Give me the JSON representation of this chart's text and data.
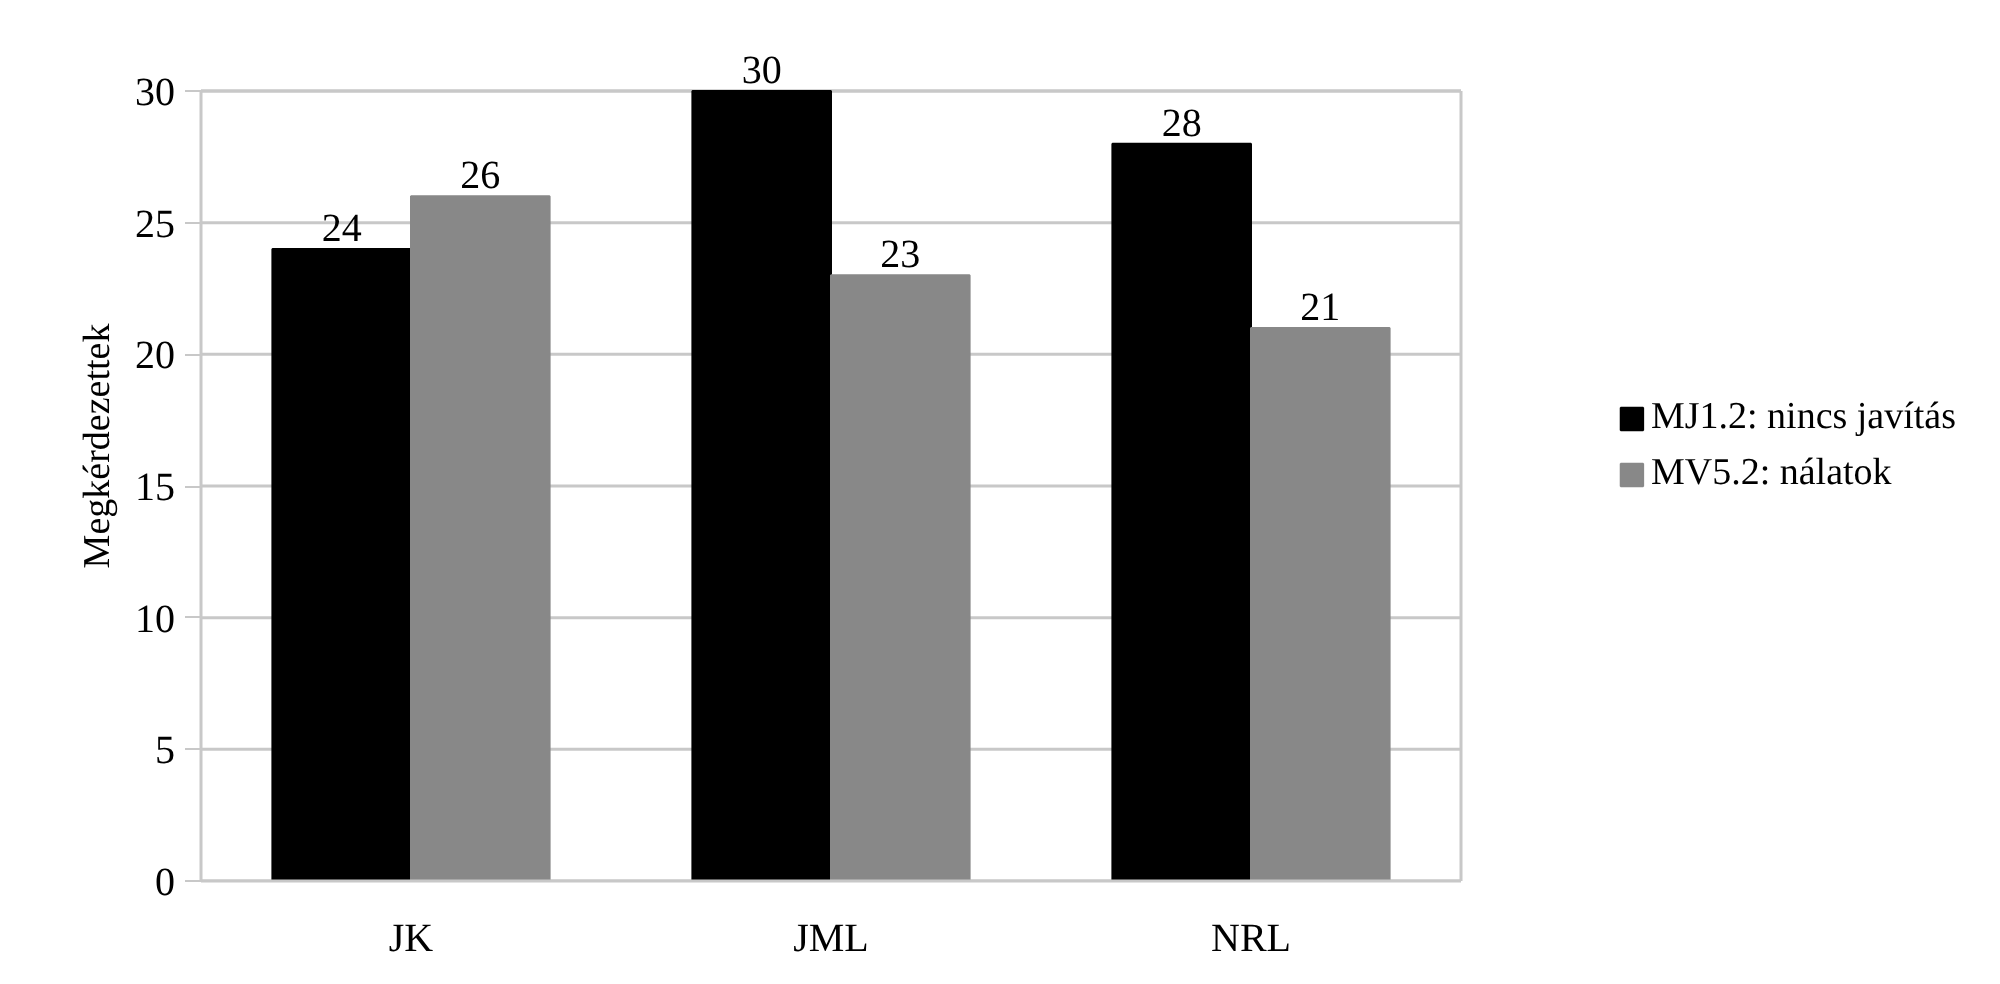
{
  "chart_data": {
    "type": "bar",
    "ylabel": "Megkérdezettek",
    "categories": [
      "JK",
      "JML",
      "NRL"
    ],
    "series": [
      {
        "name": "MJ1.2: nincs javítás",
        "color": "#000000",
        "values": [
          24,
          30,
          28
        ]
      },
      {
        "name": "MV5.2: nálatok",
        "color": "#888888",
        "values": [
          26,
          23,
          21
        ]
      }
    ],
    "ylim": [
      0,
      30
    ],
    "yticks": [
      0,
      5,
      10,
      15,
      20,
      25,
      30
    ],
    "grid": "y",
    "legend": "right",
    "data_labels": true
  }
}
